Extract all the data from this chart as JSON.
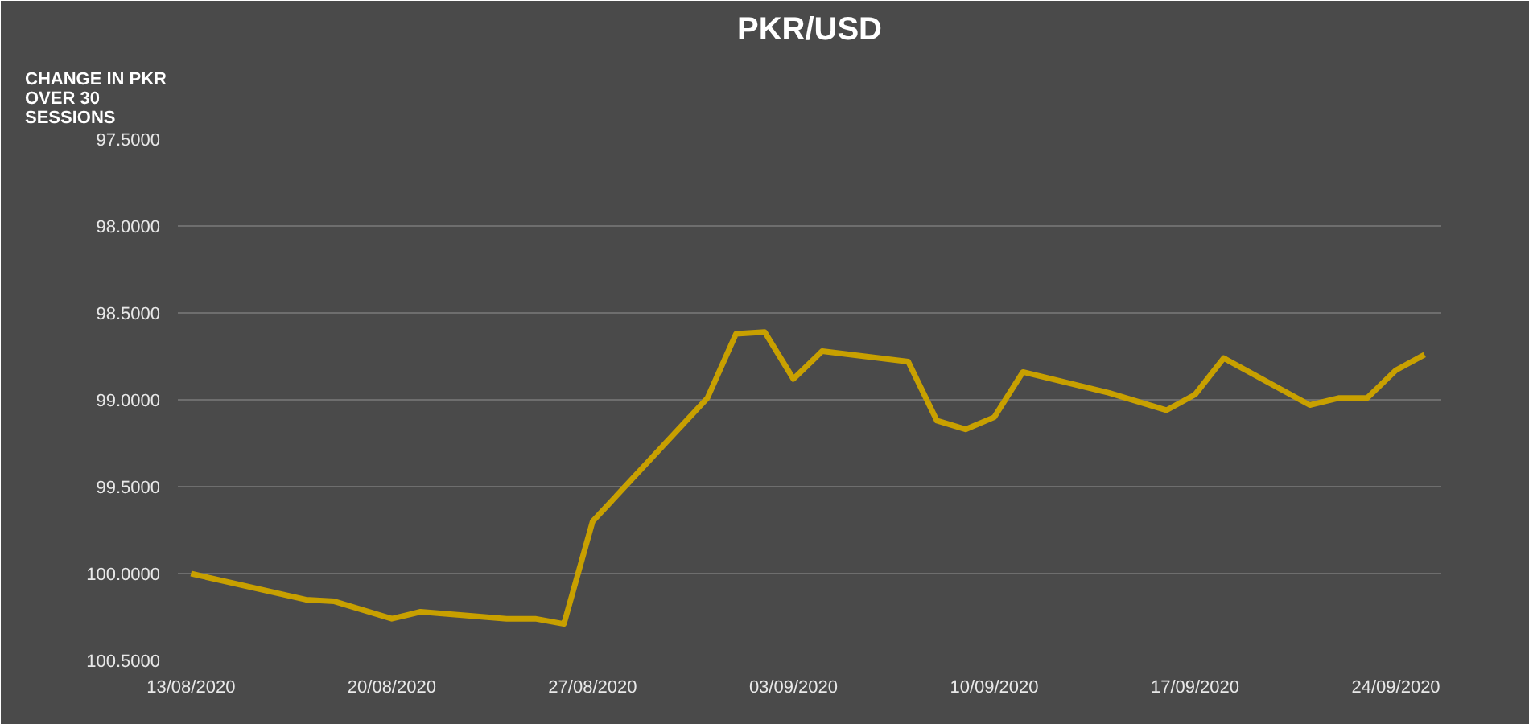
{
  "chart_data": {
    "type": "line",
    "title": "PKR/USD",
    "ylabel": "CHANGE IN PKR OVER 30 SESSIONS",
    "x": [
      "2020-08-13",
      "2020-08-17",
      "2020-08-18",
      "2020-08-20",
      "2020-08-21",
      "2020-08-24",
      "2020-08-25",
      "2020-08-26",
      "2020-08-27",
      "2020-08-31",
      "2020-09-01",
      "2020-09-02",
      "2020-09-03",
      "2020-09-04",
      "2020-09-07",
      "2020-09-08",
      "2020-09-09",
      "2020-09-10",
      "2020-09-11",
      "2020-09-14",
      "2020-09-16",
      "2020-09-17",
      "2020-09-18",
      "2020-09-21",
      "2020-09-22",
      "2020-09-23",
      "2020-09-24",
      "2020-09-25"
    ],
    "series": [
      {
        "color": "#c8a000",
        "values": [
          100.0,
          100.15,
          100.16,
          100.26,
          100.22,
          100.26,
          100.26,
          100.29,
          99.7,
          98.99,
          98.62,
          98.61,
          98.88,
          98.72,
          98.78,
          99.12,
          99.17,
          99.1,
          98.84,
          98.96,
          99.06,
          98.97,
          98.76,
          99.03,
          98.99,
          98.99,
          98.83,
          98.74
        ]
      }
    ],
    "ylim": [
      100.5,
      97.5
    ],
    "yticks": [
      {
        "value": 97.5,
        "label": "97.5000"
      },
      {
        "value": 98.0,
        "label": "98.0000"
      },
      {
        "value": 98.5,
        "label": "98.5000"
      },
      {
        "value": 99.0,
        "label": "99.0000"
      },
      {
        "value": 99.5,
        "label": "99.5000"
      },
      {
        "value": 100.0,
        "label": "100.0000"
      },
      {
        "value": 100.5,
        "label": "100.5000"
      }
    ],
    "xlim": [
      "2020-08-12T13:00",
      "2020-09-25T14:00"
    ],
    "xticks": [
      {
        "value": "2020-08-13",
        "label": "13/08/2020"
      },
      {
        "value": "2020-08-20",
        "label": "20/08/2020"
      },
      {
        "value": "2020-08-27",
        "label": "27/08/2020"
      },
      {
        "value": "2020-09-03",
        "label": "03/09/2020"
      },
      {
        "value": "2020-09-10",
        "label": "10/09/2020"
      },
      {
        "value": "2020-09-17",
        "label": "17/09/2020"
      },
      {
        "value": "2020-09-24",
        "label": "24/09/2020"
      }
    ],
    "grid": "y",
    "marker": "none",
    "line_style": "solid"
  }
}
